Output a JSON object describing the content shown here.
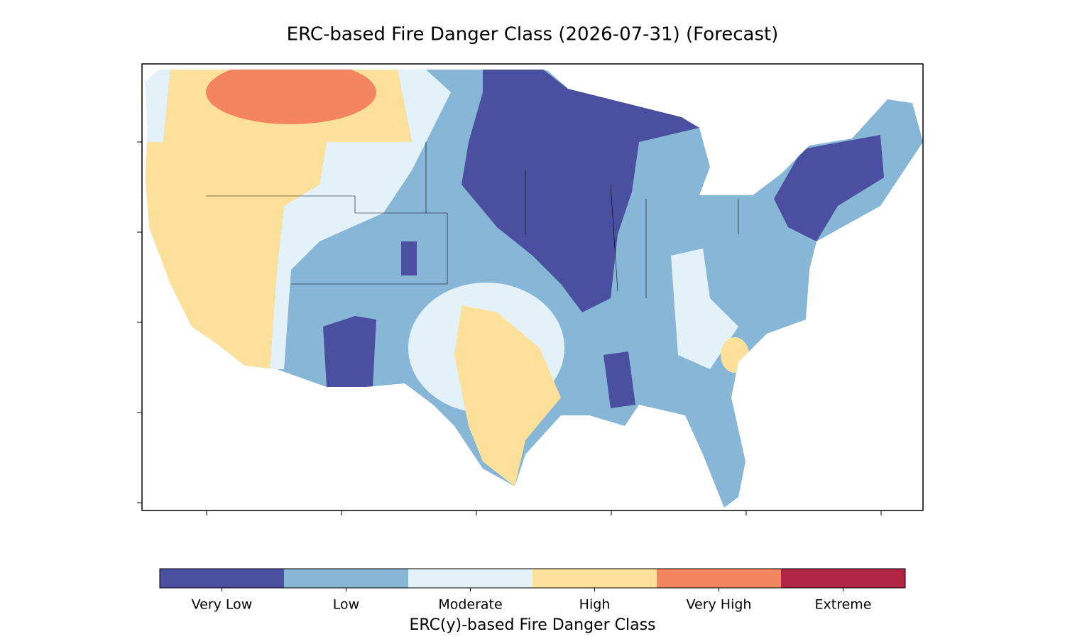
{
  "title": "ERC-based Fire Danger Class (2026-07-31) (Forecast)",
  "colorbar": {
    "label": "ERC(y)-based Fire Danger Class",
    "classes": [
      {
        "name": "Very Low",
        "color": "#4b4fa0"
      },
      {
        "name": "Low",
        "color": "#87b6d6"
      },
      {
        "name": "Moderate",
        "color": "#e3f2f8"
      },
      {
        "name": "High",
        "color": "#fde19a"
      },
      {
        "name": "Very High",
        "color": "#f4855e"
      },
      {
        "name": "Extreme",
        "color": "#b32544"
      }
    ]
  }
}
